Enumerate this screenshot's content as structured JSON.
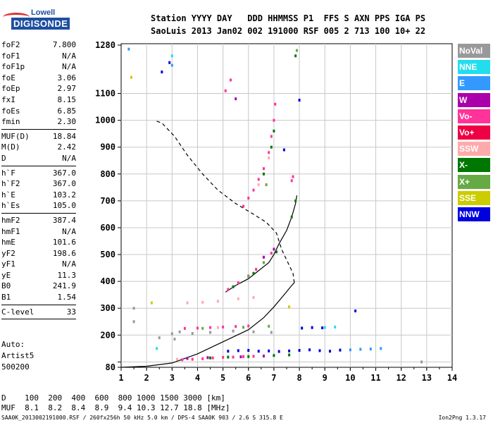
{
  "logo": {
    "line1": "Lowell",
    "line2": "DIGISONDE"
  },
  "header": {
    "line1": "Station YYYY DAY   DDD HHMMSS P1  FFS S AXN PPS IGA PS",
    "line2": "SaoLuis 2013 Jan02 002 191000 RSF 005 2 713 100 10+ 22"
  },
  "params": [
    {
      "k": "foF2",
      "v": "7.800"
    },
    {
      "k": "foF1",
      "v": "N/A"
    },
    {
      "k": "foF1p",
      "v": "N/A"
    },
    {
      "k": "foE",
      "v": "3.06"
    },
    {
      "k": "foEp",
      "v": "2.97"
    },
    {
      "k": "fxI",
      "v": "8.15"
    },
    {
      "k": "foEs",
      "v": "6.85"
    },
    {
      "k": "fmin",
      "v": "2.30"
    },
    {
      "k": "MUF(D)",
      "v": "18.84",
      "sep": true
    },
    {
      "k": "M(D)",
      "v": "2.42"
    },
    {
      "k": "D",
      "v": "N/A"
    },
    {
      "k": "h`F",
      "v": "367.0",
      "sep": true
    },
    {
      "k": "h`F2",
      "v": "367.0"
    },
    {
      "k": "h`E",
      "v": "103.2"
    },
    {
      "k": "h`Es",
      "v": "105.0"
    },
    {
      "k": "hmF2",
      "v": "387.4",
      "sep": true
    },
    {
      "k": "hmF1",
      "v": "N/A"
    },
    {
      "k": "hmE",
      "v": "101.6"
    },
    {
      "k": "yF2",
      "v": "198.6"
    },
    {
      "k": "yF1",
      "v": "N/A"
    },
    {
      "k": "yE",
      "v": "11.3"
    },
    {
      "k": "B0",
      "v": "241.9"
    },
    {
      "k": "B1",
      "v": "1.54"
    },
    {
      "k": "C-level",
      "v": "33",
      "sep": true
    }
  ],
  "auto": {
    "line1": "Auto:",
    "line2": "Artist5",
    "line3": "500200"
  },
  "legend": [
    {
      "label": "NoVal",
      "color": "#999999"
    },
    {
      "label": "NNE",
      "color": "#22ddee"
    },
    {
      "label": "E",
      "color": "#3399ff"
    },
    {
      "label": "W",
      "color": "#aa00aa"
    },
    {
      "label": "Vo-",
      "color": "#ff3399"
    },
    {
      "label": "Vo+",
      "color": "#ee0044"
    },
    {
      "label": "SSW",
      "color": "#ffaaaa"
    },
    {
      "label": "X-",
      "color": "#007700"
    },
    {
      "label": "X+",
      "color": "#66aa44"
    },
    {
      "label": "SSE",
      "color": "#cccc00"
    },
    {
      "label": "NNW",
      "color": "#0000dd"
    }
  ],
  "bottom": {
    "line1": "D    100  200  400  600  800 1000 1500 3000 [km]",
    "line2": "MUF  8.1  8.2  8.4  8.9  9.4 10.3 12.7 18.8 [MHz]"
  },
  "footer": {
    "left": "SAA0K_2013002191000.RSF / 260fx256h 50 kHz 5.0 km / DPS-4 SAA0K 903 / 2.6 S 315.8 E",
    "right": "Ion2Png 1.3.17"
  },
  "chart_data": {
    "type": "scatter",
    "xlim": [
      1,
      14
    ],
    "ylim": [
      80,
      1280
    ],
    "x_ticks": [
      1,
      2,
      3,
      4,
      5,
      6,
      7,
      8,
      9,
      10,
      11,
      12,
      13,
      14
    ],
    "y_ticks": [
      80,
      100,
      200,
      300,
      400,
      500,
      600,
      700,
      800,
      900,
      1000,
      1100,
      1280
    ],
    "y_tick_labels": [
      "80",
      "",
      "200",
      "300",
      "400",
      "500",
      "600",
      "700",
      "800",
      "900",
      "1000",
      "1100",
      "1280"
    ],
    "grid": true,
    "legend_position": "right",
    "profile_curve": [
      [
        1,
        80
      ],
      [
        2,
        84
      ],
      [
        3,
        96
      ],
      [
        4,
        130
      ],
      [
        5,
        175
      ],
      [
        6,
        220
      ],
      [
        6.6,
        265
      ],
      [
        7,
        305
      ],
      [
        7.4,
        350
      ],
      [
        7.7,
        385
      ],
      [
        7.8,
        395
      ],
      [
        7.75,
        430
      ],
      [
        7.55,
        470
      ],
      [
        7.3,
        520
      ],
      [
        7.1,
        580
      ],
      [
        6.7,
        620
      ],
      [
        6.2,
        650
      ],
      [
        5.5,
        690
      ],
      [
        4.8,
        740
      ],
      [
        4.2,
        800
      ],
      [
        3.6,
        870
      ],
      [
        3.1,
        940
      ],
      [
        2.6,
        990
      ],
      [
        2.3,
        1000
      ]
    ],
    "trace_curve": [
      [
        5.1,
        360
      ],
      [
        5.5,
        385
      ],
      [
        6.0,
        410
      ],
      [
        6.4,
        440
      ],
      [
        6.8,
        470
      ],
      [
        7.0,
        500
      ],
      [
        7.2,
        540
      ],
      [
        7.5,
        590
      ],
      [
        7.7,
        640
      ],
      [
        7.85,
        690
      ],
      [
        7.9,
        720
      ]
    ],
    "series": [
      {
        "name": "Vo-",
        "color": "#ff3399",
        "points": [
          [
            3.4,
            108
          ],
          [
            3.8,
            110
          ],
          [
            4.2,
            112
          ],
          [
            4.6,
            115
          ],
          [
            5.0,
            117
          ],
          [
            5.4,
            118
          ],
          [
            5.8,
            120
          ],
          [
            6.2,
            121
          ],
          [
            6.6,
            122
          ],
          [
            3.5,
            225
          ],
          [
            4.0,
            226
          ],
          [
            4.5,
            228
          ],
          [
            5.0,
            230
          ],
          [
            5.5,
            232
          ],
          [
            6.0,
            234
          ],
          [
            5.2,
            370
          ],
          [
            5.6,
            395
          ],
          [
            6.0,
            420
          ],
          [
            6.3,
            445
          ],
          [
            6.6,
            470
          ],
          [
            6.9,
            505
          ],
          [
            5.8,
            680
          ],
          [
            6.0,
            710
          ],
          [
            6.2,
            740
          ],
          [
            6.4,
            780
          ],
          [
            6.6,
            820
          ],
          [
            6.8,
            880
          ],
          [
            6.9,
            940
          ],
          [
            7.0,
            1000
          ],
          [
            7.05,
            1060
          ],
          [
            5.1,
            1110
          ],
          [
            5.3,
            1150
          ],
          [
            7.7,
            775
          ],
          [
            7.75,
            790
          ]
        ]
      },
      {
        "name": "X-",
        "color": "#007700",
        "points": [
          [
            4.5,
            115
          ],
          [
            5.2,
            118
          ],
          [
            6.0,
            120
          ],
          [
            7.0,
            124
          ],
          [
            7.6,
            126
          ],
          [
            5.4,
            380
          ],
          [
            6.2,
            430
          ],
          [
            7.1,
            510
          ],
          [
            7.7,
            640
          ],
          [
            7.85,
            700
          ],
          [
            6.6,
            800
          ],
          [
            6.9,
            900
          ],
          [
            7.0,
            960
          ],
          [
            7.85,
            1240
          ]
        ]
      },
      {
        "name": "NNW",
        "color": "#0000dd",
        "points": [
          [
            5.2,
            140
          ],
          [
            5.6,
            142
          ],
          [
            6.0,
            143
          ],
          [
            6.4,
            140
          ],
          [
            6.8,
            141
          ],
          [
            7.2,
            139
          ],
          [
            7.6,
            141
          ],
          [
            8.0,
            143
          ],
          [
            8.4,
            145
          ],
          [
            8.8,
            142
          ],
          [
            9.2,
            140
          ],
          [
            9.6,
            144
          ],
          [
            8.1,
            226
          ],
          [
            8.5,
            228
          ],
          [
            8.9,
            227
          ],
          [
            2.6,
            1180
          ],
          [
            2.9,
            1215
          ],
          [
            8.0,
            1075
          ],
          [
            7.4,
            890
          ],
          [
            10.2,
            290
          ]
        ]
      },
      {
        "name": "E",
        "color": "#3399ff",
        "points": [
          [
            10.0,
            145
          ],
          [
            10.4,
            147
          ],
          [
            10.8,
            148
          ],
          [
            11.2,
            150
          ],
          [
            1.3,
            1265
          ],
          [
            3.0,
            1205
          ]
        ]
      },
      {
        "name": "NNE",
        "color": "#22ddee",
        "points": [
          [
            9.0,
            228
          ],
          [
            9.4,
            230
          ],
          [
            2.4,
            150
          ],
          [
            3.0,
            1240
          ]
        ]
      },
      {
        "name": "W",
        "color": "#aa00aa",
        "points": [
          [
            3.6,
            113
          ],
          [
            4.4,
            116
          ],
          [
            5.7,
            119
          ],
          [
            6.6,
            122
          ],
          [
            6.6,
            490
          ],
          [
            7.0,
            520
          ],
          [
            5.5,
            1080
          ]
        ]
      },
      {
        "name": "X+",
        "color": "#66aa44",
        "points": [
          [
            4.2,
            225
          ],
          [
            5.8,
            229
          ],
          [
            6.8,
            233
          ],
          [
            6.0,
            418
          ],
          [
            6.6,
            470
          ],
          [
            6.7,
            760
          ],
          [
            7.9,
            1260
          ]
        ]
      },
      {
        "name": "SSW",
        "color": "#ffaaaa",
        "points": [
          [
            3.2,
            110
          ],
          [
            4.8,
            228
          ],
          [
            6.4,
            760
          ],
          [
            6.8,
            860
          ],
          [
            3.6,
            320
          ],
          [
            4.2,
            322
          ],
          [
            4.8,
            326
          ],
          [
            5.6,
            335
          ],
          [
            6.2,
            340
          ]
        ]
      },
      {
        "name": "SSE",
        "color": "#cccc00",
        "points": [
          [
            1.4,
            1160
          ],
          [
            2.2,
            320
          ],
          [
            7.6,
            305
          ]
        ]
      },
      {
        "name": "NoVal",
        "color": "#999999",
        "points": [
          [
            3.0,
            205
          ],
          [
            3.3,
            212
          ],
          [
            3.8,
            206
          ],
          [
            4.5,
            210
          ],
          [
            5.4,
            215
          ],
          [
            6.2,
            212
          ],
          [
            6.9,
            210
          ],
          [
            2.5,
            190
          ],
          [
            3.1,
            185
          ],
          [
            1.5,
            300
          ],
          [
            1.5,
            250
          ],
          [
            12.8,
            100
          ]
        ]
      }
    ]
  }
}
